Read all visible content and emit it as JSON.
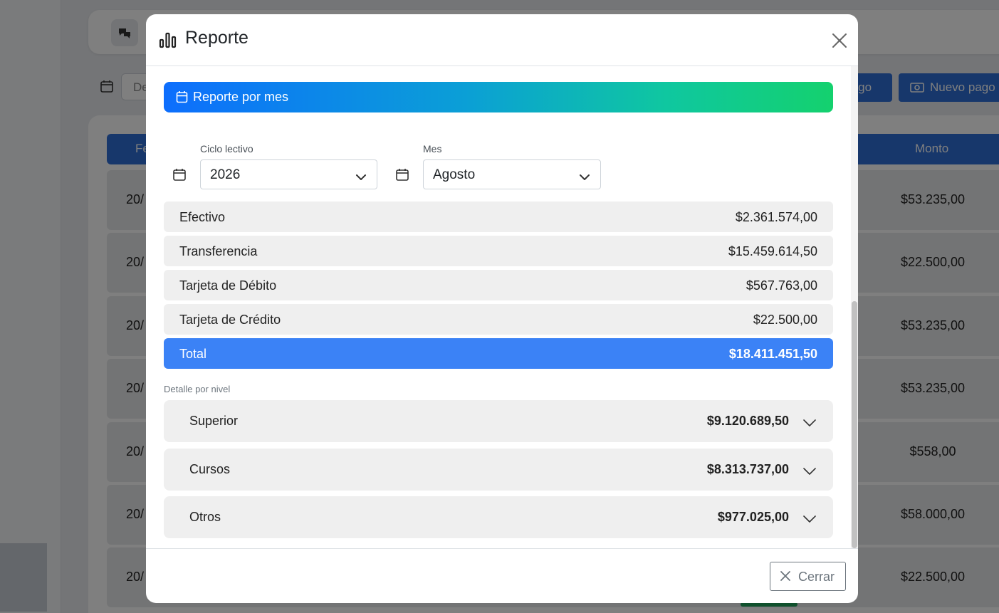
{
  "background": {
    "date_placeholder": "De",
    "btn_cargo_label": "argo",
    "btn_nuevo_label": "Nuevo pago",
    "table_header_first": "Fe",
    "table_header_amount": "Monto",
    "rows": [
      {
        "date": "20/",
        "amount": "$53.235,00"
      },
      {
        "date": "20/",
        "amount": "$22.500,00"
      },
      {
        "date": "20/",
        "amount": "$53.235,00"
      },
      {
        "date": "20/",
        "amount": "$53.235,00"
      },
      {
        "date": "20/",
        "amount": "$558,00"
      },
      {
        "date": "20/",
        "amount": "$58.000,00"
      },
      {
        "date": "20/",
        "amount": "$22.500,00"
      }
    ]
  },
  "modal": {
    "title": "Reporte",
    "title_icon": "bar-chart-icon",
    "banner_label": "Reporte por mes",
    "cycle": {
      "label": "Ciclo lectivo",
      "value": "2026"
    },
    "month": {
      "label": "Mes",
      "value": "Agosto"
    },
    "payments": [
      {
        "label": "Efectivo",
        "amount": "$2.361.574,00"
      },
      {
        "label": "Transferencia",
        "amount": "$15.459.614,50"
      },
      {
        "label": "Tarjeta de Débito",
        "amount": "$567.763,00"
      },
      {
        "label": "Tarjeta de Crédito",
        "amount": "$22.500,00"
      }
    ],
    "total": {
      "label": "Total",
      "amount": "$18.411.451,50"
    },
    "levels_label": "Detalle por nivel",
    "levels": [
      {
        "label": "Superior",
        "amount": "$9.120.689,50"
      },
      {
        "label": "Cursos",
        "amount": "$8.313.737,00"
      },
      {
        "label": "Otros",
        "amount": "$977.025,00"
      }
    ],
    "close_label": "Cerrar"
  },
  "colors": {
    "accent": "#3b82f6",
    "primary": "#2f6fd6",
    "banner_start": "#0d6efd",
    "banner_end": "#14d16e"
  }
}
